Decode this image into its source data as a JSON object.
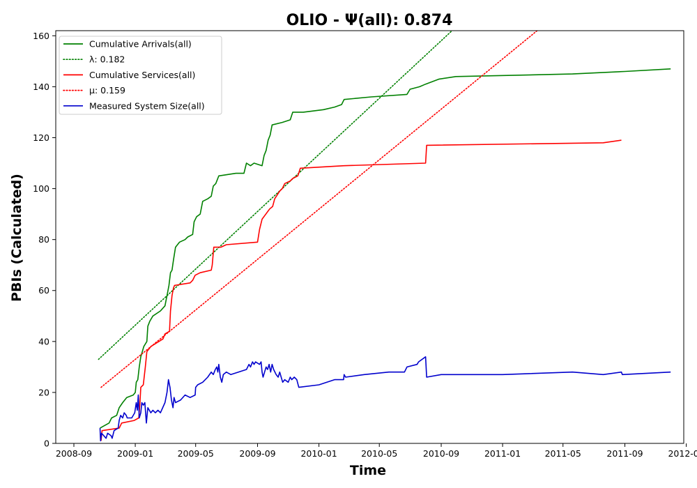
{
  "chart_data": {
    "type": "line",
    "title": "OLIO -  Ψ(all): 0.874",
    "xlabel": "Time",
    "ylabel": "PBIs (Calculated)",
    "xlim": [
      "2008-07-27",
      "2011-12-27"
    ],
    "ylim": [
      0,
      162
    ],
    "x_ticks": [
      "2008-09",
      "2009-01",
      "2009-05",
      "2009-09",
      "2010-01",
      "2010-05",
      "2010-09",
      "2011-01",
      "2011-05",
      "2011-09",
      "2012-01"
    ],
    "y_ticks": [
      0,
      20,
      40,
      60,
      80,
      100,
      120,
      140,
      160
    ],
    "legend_position": "top-left",
    "series": [
      {
        "name": "Cumulative Arrivals(all)",
        "color": "#008000",
        "style": "solid",
        "points": [
          [
            "2008-10-23",
            6
          ],
          [
            "2008-11-01",
            7
          ],
          [
            "2008-11-10",
            8
          ],
          [
            "2008-11-15",
            10
          ],
          [
            "2008-11-25",
            11
          ],
          [
            "2008-11-30",
            14
          ],
          [
            "2008-12-07",
            16
          ],
          [
            "2008-12-15",
            18
          ],
          [
            "2008-12-28",
            19
          ],
          [
            "2009-01-01",
            20
          ],
          [
            "2009-01-03",
            24
          ],
          [
            "2009-01-06",
            25
          ],
          [
            "2009-01-09",
            30
          ],
          [
            "2009-01-12",
            34
          ],
          [
            "2009-01-18",
            38
          ],
          [
            "2009-01-24",
            40
          ],
          [
            "2009-01-26",
            46
          ],
          [
            "2009-01-30",
            48
          ],
          [
            "2009-02-05",
            50
          ],
          [
            "2009-02-20",
            52
          ],
          [
            "2009-03-01",
            54
          ],
          [
            "2009-03-06",
            59
          ],
          [
            "2009-03-09",
            62
          ],
          [
            "2009-03-12",
            67
          ],
          [
            "2009-03-15",
            68
          ],
          [
            "2009-03-18",
            72
          ],
          [
            "2009-03-22",
            77
          ],
          [
            "2009-03-30",
            79
          ],
          [
            "2009-04-10",
            80
          ],
          [
            "2009-04-15",
            81
          ],
          [
            "2009-04-25",
            82
          ],
          [
            "2009-04-28",
            87
          ],
          [
            "2009-05-03",
            89
          ],
          [
            "2009-05-10",
            90
          ],
          [
            "2009-05-15",
            95
          ],
          [
            "2009-05-25",
            96
          ],
          [
            "2009-06-01",
            97
          ],
          [
            "2009-06-05",
            101
          ],
          [
            "2009-06-10",
            102
          ],
          [
            "2009-06-16",
            105
          ],
          [
            "2009-07-20",
            106
          ],
          [
            "2009-08-05",
            106
          ],
          [
            "2009-08-10",
            110
          ],
          [
            "2009-08-18",
            109
          ],
          [
            "2009-08-25",
            110
          ],
          [
            "2009-09-10",
            109
          ],
          [
            "2009-09-14",
            113
          ],
          [
            "2009-09-18",
            115
          ],
          [
            "2009-09-22",
            119
          ],
          [
            "2009-09-26",
            121
          ],
          [
            "2009-09-30",
            125
          ],
          [
            "2009-10-20",
            126
          ],
          [
            "2009-11-05",
            127
          ],
          [
            "2009-11-10",
            130
          ],
          [
            "2009-12-01",
            130
          ],
          [
            "2010-01-10",
            131
          ],
          [
            "2010-02-01",
            132
          ],
          [
            "2010-02-15",
            133
          ],
          [
            "2010-02-20",
            135
          ],
          [
            "2010-04-15",
            136
          ],
          [
            "2010-06-25",
            137
          ],
          [
            "2010-07-01",
            139
          ],
          [
            "2010-07-20",
            140
          ],
          [
            "2010-08-01",
            141
          ],
          [
            "2010-08-28",
            143
          ],
          [
            "2010-09-30",
            144
          ],
          [
            "2011-05-20",
            145
          ],
          [
            "2011-09-01",
            146
          ],
          [
            "2011-12-01",
            147
          ]
        ]
      },
      {
        "name": "λ: 0.182",
        "color": "#008000",
        "style": "dotted",
        "points": [
          [
            "2008-10-20",
            33
          ],
          [
            "2010-09-28",
            163
          ]
        ]
      },
      {
        "name": "Cumulative Services(all)",
        "color": "#ff0000",
        "style": "solid",
        "points": [
          [
            "2008-10-25",
            1
          ],
          [
            "2008-10-27",
            5
          ],
          [
            "2008-11-30",
            6
          ],
          [
            "2008-12-05",
            8
          ],
          [
            "2008-12-30",
            9
          ],
          [
            "2009-01-08",
            10
          ],
          [
            "2009-01-10",
            15
          ],
          [
            "2009-01-12",
            22
          ],
          [
            "2009-01-17",
            23
          ],
          [
            "2009-01-21",
            30
          ],
          [
            "2009-01-24",
            36
          ],
          [
            "2009-02-01",
            38
          ],
          [
            "2009-02-25",
            41
          ],
          [
            "2009-03-01",
            43
          ],
          [
            "2009-03-10",
            44
          ],
          [
            "2009-03-12",
            52
          ],
          [
            "2009-03-15",
            58
          ],
          [
            "2009-03-18",
            61
          ],
          [
            "2009-03-20",
            62
          ],
          [
            "2009-04-20",
            63
          ],
          [
            "2009-04-25",
            64
          ],
          [
            "2009-04-30",
            66
          ],
          [
            "2009-05-10",
            67
          ],
          [
            "2009-06-01",
            68
          ],
          [
            "2009-06-03",
            70
          ],
          [
            "2009-06-06",
            77
          ],
          [
            "2009-06-20",
            77
          ],
          [
            "2009-07-01",
            78
          ],
          [
            "2009-09-01",
            79
          ],
          [
            "2009-09-05",
            84
          ],
          [
            "2009-09-10",
            88
          ],
          [
            "2009-09-25",
            92
          ],
          [
            "2009-10-01",
            93
          ],
          [
            "2009-10-05",
            96
          ],
          [
            "2009-10-15",
            99
          ],
          [
            "2009-10-20",
            100
          ],
          [
            "2009-10-25",
            102
          ],
          [
            "2009-11-05",
            103
          ],
          [
            "2009-11-10",
            104
          ],
          [
            "2009-11-20",
            105
          ],
          [
            "2009-11-25",
            108
          ],
          [
            "2010-02-20",
            109
          ],
          [
            "2010-08-01",
            110
          ],
          [
            "2010-08-03",
            117
          ],
          [
            "2011-07-20",
            118
          ],
          [
            "2011-08-25",
            119
          ]
        ]
      },
      {
        "name": "μ: 0.159",
        "color": "#ff0000",
        "style": "dotted",
        "points": [
          [
            "2008-10-25",
            22
          ],
          [
            "2011-03-17",
            163
          ]
        ]
      },
      {
        "name": "Measured System Size(all)",
        "color": "#0000cd",
        "style": "solid",
        "points": [
          [
            "2008-10-23",
            6
          ],
          [
            "2008-10-24",
            1
          ],
          [
            "2008-10-26",
            4
          ],
          [
            "2008-11-04",
            2
          ],
          [
            "2008-11-07",
            4
          ],
          [
            "2008-11-14",
            3
          ],
          [
            "2008-11-16",
            2
          ],
          [
            "2008-11-20",
            5
          ],
          [
            "2008-11-28",
            6
          ],
          [
            "2008-11-30",
            9
          ],
          [
            "2008-12-03",
            11
          ],
          [
            "2008-12-07",
            10
          ],
          [
            "2008-12-10",
            12
          ],
          [
            "2008-12-14",
            11
          ],
          [
            "2008-12-16",
            10
          ],
          [
            "2008-12-25",
            10
          ],
          [
            "2008-12-31",
            12
          ],
          [
            "2009-01-03",
            16
          ],
          [
            "2009-01-05",
            13
          ],
          [
            "2009-01-07",
            19
          ],
          [
            "2009-01-09",
            10
          ],
          [
            "2009-01-12",
            12
          ],
          [
            "2009-01-14",
            16
          ],
          [
            "2009-01-17",
            15
          ],
          [
            "2009-01-20",
            16
          ],
          [
            "2009-01-23",
            8
          ],
          [
            "2009-01-26",
            14
          ],
          [
            "2009-02-01",
            12
          ],
          [
            "2009-02-05",
            13
          ],
          [
            "2009-02-10",
            12
          ],
          [
            "2009-02-15",
            13
          ],
          [
            "2009-02-20",
            12
          ],
          [
            "2009-03-01",
            16
          ],
          [
            "2009-03-05",
            20
          ],
          [
            "2009-03-08",
            25
          ],
          [
            "2009-03-11",
            22
          ],
          [
            "2009-03-14",
            17
          ],
          [
            "2009-03-17",
            14
          ],
          [
            "2009-03-19",
            18
          ],
          [
            "2009-03-22",
            16
          ],
          [
            "2009-04-01",
            17
          ],
          [
            "2009-04-10",
            19
          ],
          [
            "2009-04-20",
            18
          ],
          [
            "2009-04-30",
            19
          ],
          [
            "2009-05-01",
            22
          ],
          [
            "2009-05-05",
            23
          ],
          [
            "2009-05-15",
            24
          ],
          [
            "2009-05-25",
            26
          ],
          [
            "2009-06-01",
            28
          ],
          [
            "2009-06-05",
            27
          ],
          [
            "2009-06-09",
            29
          ],
          [
            "2009-06-12",
            30
          ],
          [
            "2009-06-14",
            28
          ],
          [
            "2009-06-16",
            31
          ],
          [
            "2009-06-19",
            26
          ],
          [
            "2009-06-22",
            24
          ],
          [
            "2009-06-25",
            27
          ],
          [
            "2009-07-01",
            28
          ],
          [
            "2009-07-10",
            27
          ],
          [
            "2009-07-25",
            28
          ],
          [
            "2009-08-10",
            29
          ],
          [
            "2009-08-15",
            31
          ],
          [
            "2009-08-18",
            30
          ],
          [
            "2009-08-22",
            32
          ],
          [
            "2009-08-25",
            31
          ],
          [
            "2009-08-28",
            32
          ],
          [
            "2009-09-05",
            31
          ],
          [
            "2009-09-08",
            32
          ],
          [
            "2009-09-10",
            28
          ],
          [
            "2009-09-12",
            26
          ],
          [
            "2009-09-15",
            28
          ],
          [
            "2009-09-18",
            30
          ],
          [
            "2009-09-21",
            29
          ],
          [
            "2009-09-24",
            31
          ],
          [
            "2009-09-27",
            28
          ],
          [
            "2009-09-30",
            31
          ],
          [
            "2009-10-03",
            29
          ],
          [
            "2009-10-08",
            27
          ],
          [
            "2009-10-12",
            26
          ],
          [
            "2009-10-15",
            28
          ],
          [
            "2009-10-18",
            26
          ],
          [
            "2009-10-21",
            24
          ],
          [
            "2009-10-25",
            25
          ],
          [
            "2009-11-01",
            24
          ],
          [
            "2009-11-05",
            26
          ],
          [
            "2009-11-08",
            25
          ],
          [
            "2009-11-13",
            26
          ],
          [
            "2009-11-18",
            25
          ],
          [
            "2009-11-22",
            22
          ],
          [
            "2010-01-01",
            23
          ],
          [
            "2010-02-01",
            25
          ],
          [
            "2010-02-19",
            25
          ],
          [
            "2010-02-20",
            27
          ],
          [
            "2010-02-23",
            26
          ],
          [
            "2010-04-01",
            27
          ],
          [
            "2010-05-20",
            28
          ],
          [
            "2010-06-20",
            28
          ],
          [
            "2010-06-25",
            30
          ],
          [
            "2010-07-15",
            31
          ],
          [
            "2010-07-18",
            32
          ],
          [
            "2010-08-01",
            34
          ],
          [
            "2010-08-03",
            26
          ],
          [
            "2010-09-01",
            27
          ],
          [
            "2011-01-01",
            27
          ],
          [
            "2011-05-20",
            28
          ],
          [
            "2011-07-20",
            27
          ],
          [
            "2011-08-25",
            28
          ],
          [
            "2011-08-27",
            27
          ],
          [
            "2011-12-01",
            28
          ]
        ]
      }
    ]
  }
}
